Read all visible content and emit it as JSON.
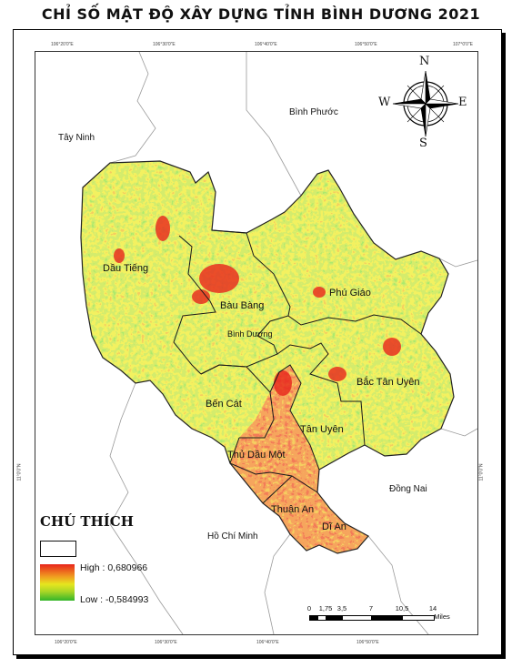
{
  "title": "CHỈ SỐ MẬT ĐỘ XÂY DỰNG TỈNH BÌNH DƯƠNG 2021",
  "graticule": {
    "top": [
      "106°20'0\"E",
      "106°30'0\"E",
      "106°40'0\"E",
      "106°50'0\"E",
      "107°0'0\"E"
    ],
    "bottom": [
      "106°20'0\"E",
      "106°30'0\"E",
      "106°40'0\"E",
      "106°50'0\"E"
    ],
    "left": "11°0'0\"N",
    "right": "11°0'0\"N"
  },
  "neighbors": {
    "tay_ninh": "Tây Ninh",
    "binh_phuoc": "Bình Phước",
    "dong_nai": "Đồng Nai",
    "ho_chi_minh": "Hồ Chí Minh"
  },
  "districts": {
    "dau_tieng": "Dầu Tiếng",
    "bau_bang": "Bàu Bàng",
    "binh_duong": "Bình Dương",
    "phu_giao": "Phú Giáo",
    "bac_tan_uyen": "Bắc Tân Uyên",
    "ben_cat": "Bến Cát",
    "tan_uyen": "Tân Uyên",
    "thu_dau_mot": "Thủ Dầu Một",
    "thuan_an": "Thuận An",
    "di_an": "Dĩ An"
  },
  "legend": {
    "title": "CHÚ THÍCH",
    "high": "High : 0,680966",
    "low": "Low : -0,584993",
    "colors": [
      "#e8251c",
      "#f0a020",
      "#e6e61e",
      "#a9d626",
      "#33b52a"
    ]
  },
  "compass": {
    "n": "N",
    "s": "S",
    "e": "E",
    "w": "W"
  },
  "scale": {
    "ticks": [
      "0",
      "1,75",
      "3,5",
      "7",
      "10,5",
      "14"
    ],
    "unit": "Miles"
  }
}
